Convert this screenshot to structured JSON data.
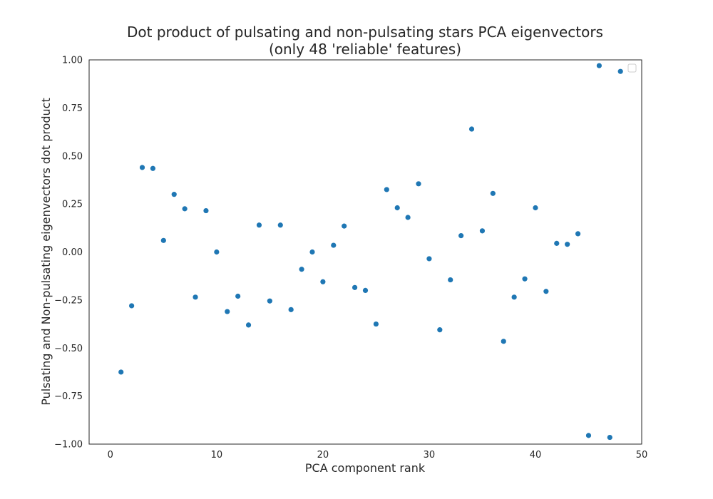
{
  "chart_data": {
    "type": "scatter",
    "title": "Dot product of pulsating and non-pulsating stars PCA eigenvectors",
    "subtitle": "(only 48 'reliable' features)",
    "xlabel": "PCA component rank",
    "ylabel": "Pulsating and Non-pulsating eigenvectors dot product",
    "xlim": [
      -2,
      50
    ],
    "ylim": [
      -1.0,
      1.0
    ],
    "xticks": [
      0,
      10,
      20,
      30,
      40,
      50
    ],
    "xtick_labels": [
      "0",
      "10",
      "20",
      "30",
      "40",
      "50"
    ],
    "yticks": [
      -1.0,
      -0.75,
      -0.5,
      -0.25,
      0.0,
      0.25,
      0.5,
      0.75,
      1.0
    ],
    "ytick_labels": [
      "−1.00",
      "−0.75",
      "−0.50",
      "−0.25",
      "0.00",
      "0.25",
      "0.50",
      "0.75",
      "1.00"
    ],
    "grid": false,
    "legend": "top-right (empty)",
    "marker_color": "#1f77b4",
    "x": [
      1,
      2,
      3,
      4,
      5,
      6,
      7,
      8,
      9,
      10,
      11,
      12,
      13,
      14,
      15,
      16,
      17,
      18,
      19,
      20,
      21,
      22,
      23,
      24,
      25,
      26,
      27,
      28,
      29,
      30,
      31,
      32,
      33,
      34,
      35,
      36,
      37,
      38,
      39,
      40,
      41,
      42,
      43,
      44,
      45,
      46,
      47,
      48
    ],
    "y": [
      -0.625,
      -0.28,
      0.44,
      0.435,
      0.06,
      0.3,
      0.225,
      -0.235,
      0.215,
      0.0,
      -0.31,
      -0.23,
      -0.38,
      0.14,
      -0.255,
      0.14,
      -0.3,
      -0.09,
      0.0,
      -0.155,
      0.035,
      0.135,
      -0.185,
      -0.2,
      -0.375,
      0.325,
      0.23,
      0.18,
      0.355,
      -0.035,
      -0.405,
      -0.145,
      0.085,
      0.64,
      0.11,
      0.305,
      -0.465,
      -0.235,
      -0.14,
      0.23,
      -0.205,
      0.045,
      0.04,
      0.095,
      -0.955,
      0.97,
      -0.965,
      0.94
    ]
  }
}
